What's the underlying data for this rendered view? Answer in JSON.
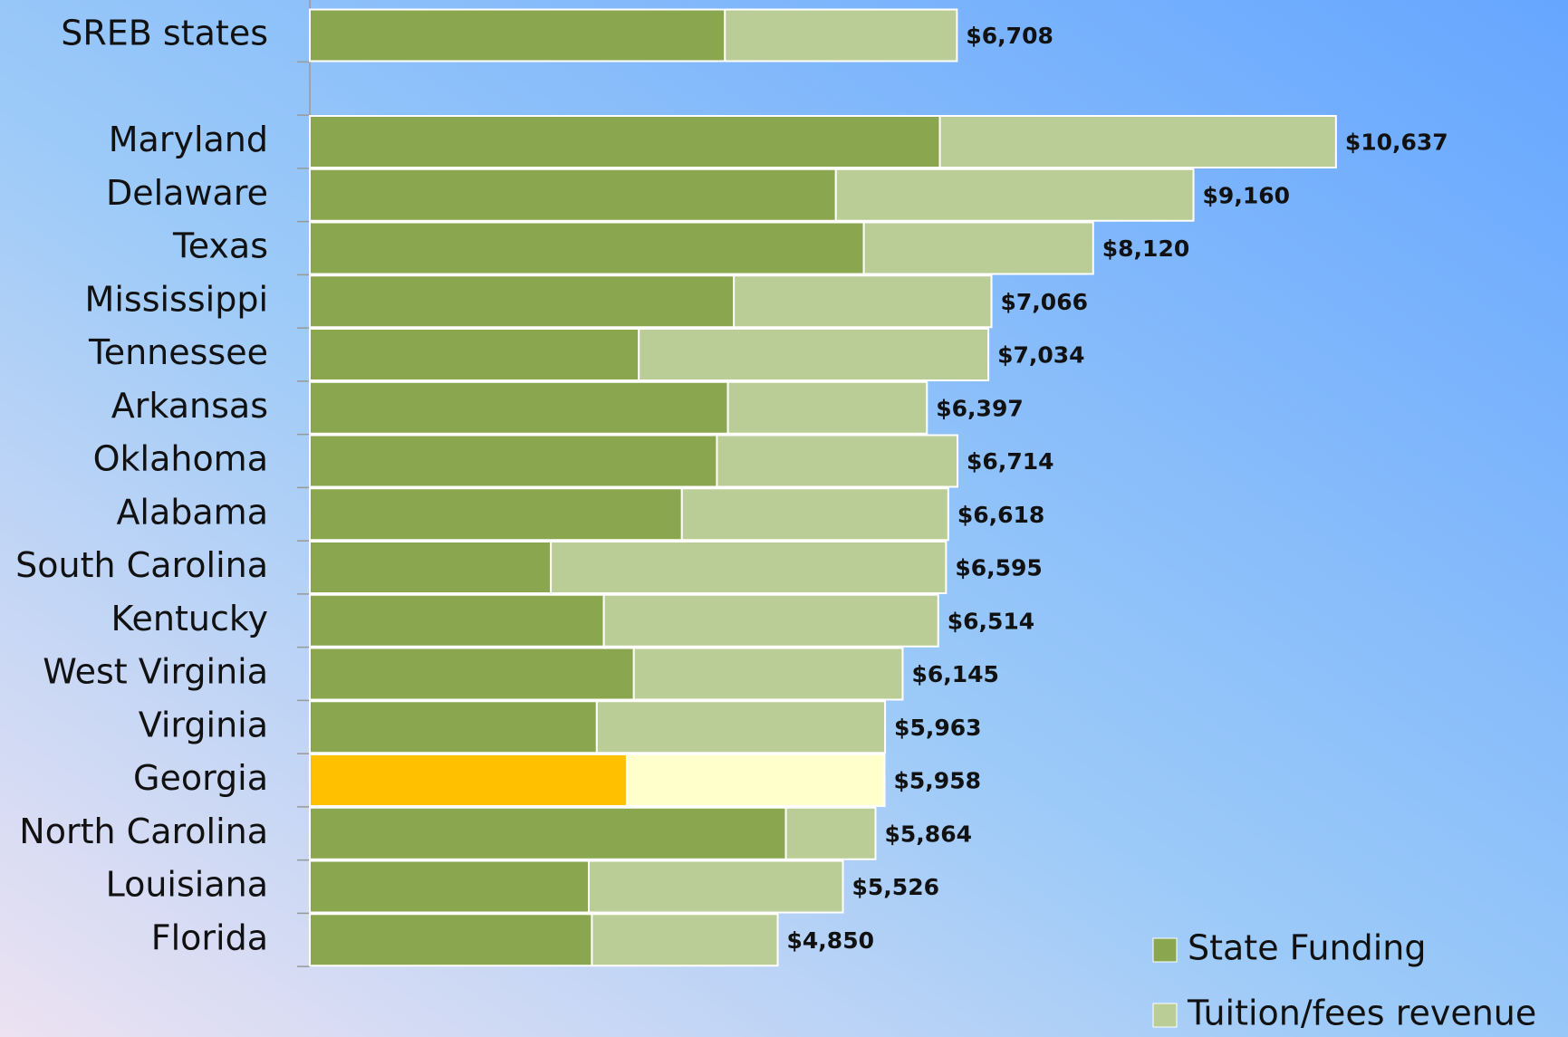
{
  "chart_data": {
    "type": "stacked_bar_horizontal",
    "categories": [
      "SREB states",
      null,
      "Maryland",
      "Delaware",
      "Texas",
      "Mississippi",
      "Tennessee",
      "Arkansas",
      "Oklahoma",
      "Alabama",
      "South Carolina",
      "Kentucky",
      "West Virginia",
      "Virginia",
      "Georgia",
      "North Carolina",
      "Louisiana",
      "Florida"
    ],
    "series": [
      {
        "name": "State Funding",
        "color": "#8aa64f",
        "highlight_color": "#ffc000",
        "values": [
          4303,
          null,
          6531,
          5453,
          5743,
          4396,
          3411,
          4334,
          4220,
          3857,
          2499,
          3048,
          3359,
          2975,
          3286,
          4935,
          2892,
          2924
        ]
      },
      {
        "name": "Tuition/fees revenue",
        "color": "#bacd96",
        "highlight_color": "#ffffcc",
        "values": [
          2405,
          null,
          4106,
          3707,
          2377,
          2670,
          3623,
          2063,
          2494,
          2761,
          4096,
          3466,
          2786,
          2988,
          2672,
          929,
          2634,
          1926
        ]
      }
    ],
    "highlight_index": 14,
    "totals": [
      6708,
      null,
      10637,
      9160,
      8120,
      7066,
      7034,
      6397,
      6714,
      6618,
      6595,
      6514,
      6145,
      5963,
      5958,
      5864,
      5526,
      4850
    ],
    "total_labels": [
      "$6,708",
      null,
      "$10,637",
      "$9,160",
      "$8,120",
      "$7,066",
      "$7,034",
      "$6,397",
      "$6,714",
      "$6,618",
      "$6,595",
      "$6,514",
      "$6,145",
      "$5,963",
      "$5,958",
      "$5,864",
      "$5,526",
      "$4,850"
    ],
    "legend": "bottom-right"
  }
}
